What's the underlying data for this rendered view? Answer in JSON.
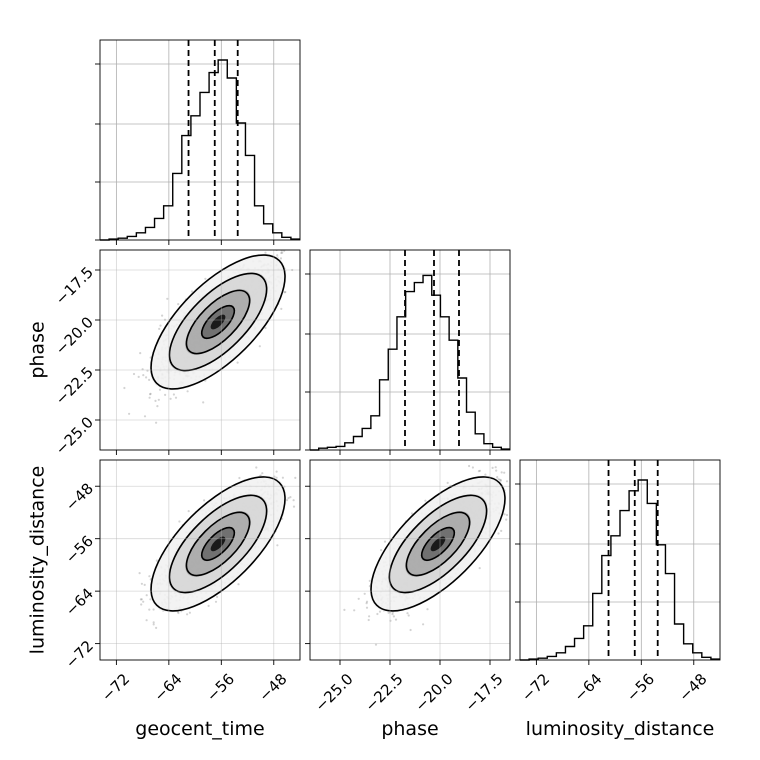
{
  "chart_data": {
    "type": "corner",
    "parameters": [
      "geocent_time",
      "phase",
      "luminosity_distance"
    ],
    "axis_labels": {
      "x": [
        "geocent_time",
        "phase",
        "luminosity_distance"
      ],
      "y": [
        "phase",
        "luminosity_distance"
      ]
    },
    "ranges": {
      "geocent_time": [
        -74.5,
        -44.0
      ],
      "phase": [
        -26.5,
        -16.5
      ],
      "luminosity_distance": [
        -74.5,
        -44.0
      ]
    },
    "ticks": {
      "geocent_time": {
        "values": [
          -72,
          -64,
          -56,
          -48
        ],
        "labels": [
          "−72",
          "−64",
          "−56",
          "−48"
        ]
      },
      "phase": {
        "values": [
          -25.0,
          -22.5,
          -20.0,
          -17.5
        ],
        "labels": [
          "−25.0",
          "−22.5",
          "−20.0",
          "−17.5"
        ]
      },
      "luminosity_distance": {
        "values": [
          -72,
          -64,
          -56,
          -48
        ],
        "labels": [
          "−72",
          "−64",
          "−56",
          "−48"
        ]
      }
    },
    "quantiles": {
      "geocent_time": [
        -61.0,
        -57.0,
        -53.5
      ],
      "phase": [
        -21.75,
        -20.3,
        -19.05
      ],
      "luminosity_distance": [
        -61.0,
        -57.0,
        -53.5
      ]
    },
    "histograms": {
      "geocent_time": [
        0,
        0.005,
        0.01,
        0.02,
        0.04,
        0.07,
        0.12,
        0.19,
        0.37,
        0.58,
        0.69,
        0.82,
        0.93,
        1.0,
        0.9,
        0.65,
        0.47,
        0.19,
        0.09,
        0.04,
        0.015,
        0.005
      ],
      "phase": [
        0,
        0.01,
        0.015,
        0.02,
        0.04,
        0.075,
        0.12,
        0.19,
        0.39,
        0.56,
        0.74,
        0.88,
        0.93,
        0.97,
        0.86,
        0.74,
        0.61,
        0.4,
        0.21,
        0.09,
        0.035,
        0.015,
        0.005
      ],
      "luminosity_distance": [
        0,
        0.005,
        0.01,
        0.02,
        0.04,
        0.075,
        0.12,
        0.19,
        0.37,
        0.58,
        0.69,
        0.83,
        0.94,
        1.0,
        0.87,
        0.64,
        0.48,
        0.2,
        0.09,
        0.04,
        0.015,
        0.005
      ]
    },
    "pairs": [
      {
        "x": "geocent_time",
        "y": "phase",
        "center": [
          -56.5,
          -20.1
        ]
      },
      {
        "x": "geocent_time",
        "y": "luminosity_distance",
        "center": [
          -56.5,
          -56.8
        ]
      },
      {
        "x": "phase",
        "y": "luminosity_distance",
        "center": [
          -20.1,
          -56.8
        ]
      }
    ],
    "grid": true,
    "colors": {
      "hist": "#000000",
      "points": "#808080",
      "contour": "#000000"
    }
  }
}
